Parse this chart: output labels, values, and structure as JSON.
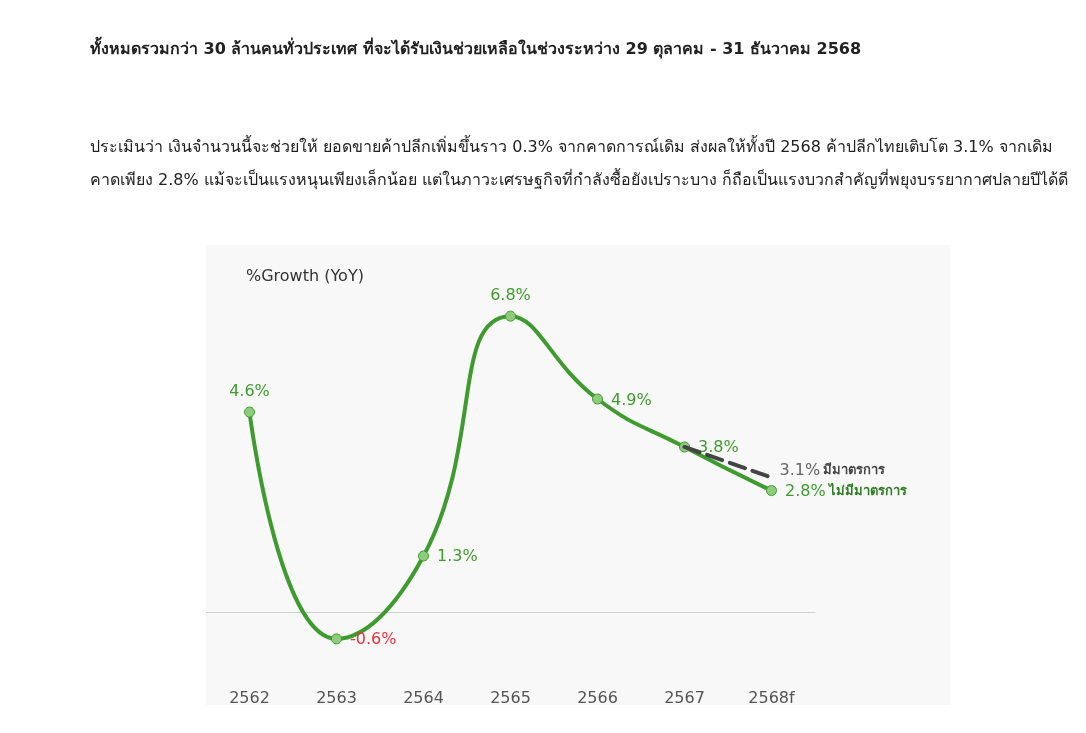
{
  "chart_data": {
    "type": "line",
    "title": "ทั้งหมดรวมกว่า 30 ล้านคนทั่วประเทศ ที่จะได้รับเงินช่วยเหลือในช่วงระหว่าง 29 ตุลาคม - 31 ธันวาคม 2568",
    "subtitle": "ประเมินว่า เงินจำนวนนี้จะช่วยให้ ยอดขายค้าปลีกเพิ่มขึ้นราว 0.3% จากคาดการณ์เดิม ส่งผลให้ทั้งปี 2568 ค้าปลีกไทยเติบโต 3.1% จากเดิมคาดเพียง 2.8% แม้จะเป็นแรงหนุนเพียงเล็กน้อย แต่ในภาวะเศรษฐกิจที่กำลังซื้อยังเปราะบาง ก็ถือเป็นแรงบวกสำคัญที่พยุงบรรยากาศปลายปีได้ดี",
    "ylabel": "%Growth (YoY)",
    "categories": [
      "2562",
      "2563",
      "2564",
      "2565",
      "2566",
      "2567",
      "2568f"
    ],
    "series": [
      {
        "name": "ไม่มีมาตรการ",
        "color": "#3f9b2f",
        "marker": "circle",
        "line_style": "solid",
        "values": [
          4.6,
          -0.6,
          1.3,
          6.8,
          4.9,
          3.8,
          2.8
        ],
        "value_labels": [
          "4.6%",
          "-0.6%",
          "1.3%",
          "6.8%",
          "4.9%",
          "3.8%",
          "2.8%"
        ]
      },
      {
        "name": "มีมาตรการ",
        "color": "#444444",
        "marker": "none",
        "line_style": "dashed",
        "values": [
          null,
          null,
          null,
          null,
          null,
          3.8,
          3.1
        ],
        "value_labels": [
          null,
          null,
          null,
          null,
          null,
          null,
          "3.1%"
        ]
      }
    ],
    "legend": false,
    "grid": false
  }
}
